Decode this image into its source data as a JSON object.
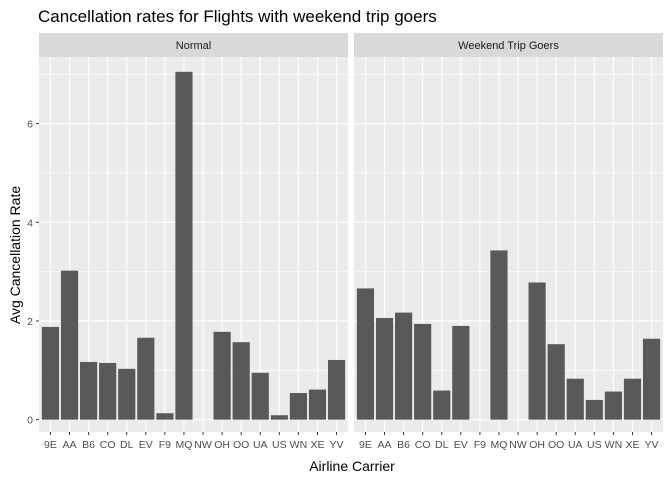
{
  "chart_data": {
    "type": "bar",
    "title": "Cancellation rates for Flights with weekend trip goers",
    "xlabel": "Airline Carrier",
    "ylabel": "Avg Cancellation Rate",
    "ylim": [
      -0.25,
      7.35
    ],
    "yticks": [
      0,
      2,
      4,
      6
    ],
    "grid": true,
    "categories": [
      "9E",
      "AA",
      "B6",
      "CO",
      "DL",
      "EV",
      "F9",
      "MQ",
      "NW",
      "OH",
      "OO",
      "UA",
      "US",
      "WN",
      "XE",
      "YV"
    ],
    "panels": [
      {
        "name": "Normal",
        "values": [
          1.88,
          3.02,
          1.17,
          1.15,
          1.03,
          1.66,
          0.13,
          7.05,
          0,
          1.78,
          1.57,
          0.95,
          0.09,
          0.54,
          0.61,
          1.21
        ]
      },
      {
        "name": "Weekend Trip Goers",
        "values": [
          2.66,
          2.06,
          2.17,
          1.94,
          0.59,
          1.9,
          0,
          3.43,
          0,
          2.78,
          1.53,
          0.83,
          0.4,
          0.57,
          0.83,
          1.64
        ]
      }
    ]
  },
  "colors": {
    "panel_bg": "#ebebeb",
    "strip_bg": "#d9d9d9",
    "grid": "#ffffff",
    "bar": "#595959"
  }
}
